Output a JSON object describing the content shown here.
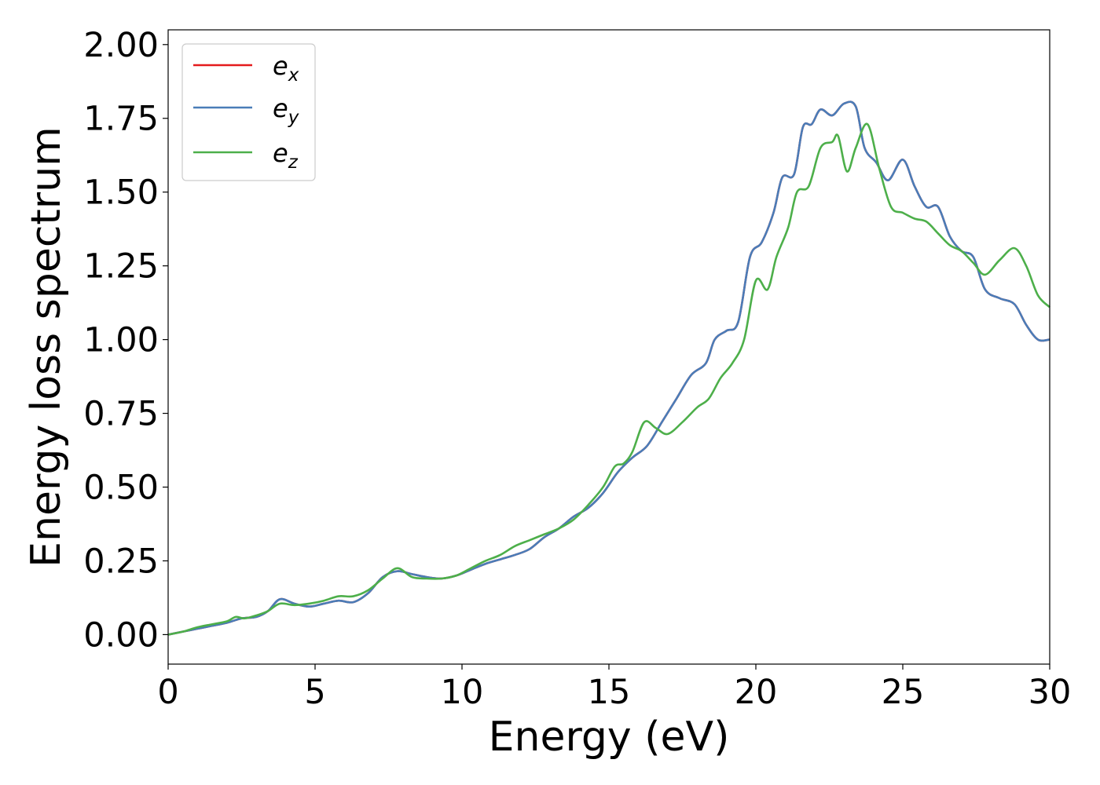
{
  "chart_data": {
    "type": "line",
    "title": "",
    "xlabel": "Energy (eV)",
    "ylabel": "Energy loss spectrum",
    "xlim": [
      0,
      30
    ],
    "ylim": [
      -0.1,
      2.05
    ],
    "xticks": [
      0,
      5,
      10,
      15,
      20,
      25,
      30
    ],
    "xtick_labels": [
      "0",
      "5",
      "10",
      "15",
      "20",
      "25",
      "30"
    ],
    "yticks": [
      0,
      0.25,
      0.5,
      0.75,
      1.0,
      1.25,
      1.5,
      1.75,
      2.0
    ],
    "ytick_labels": [
      "0.00",
      "0.25",
      "0.50",
      "0.75",
      "1.00",
      "1.25",
      "1.50",
      "1.75",
      "2.00"
    ],
    "grid": false,
    "legend_position": "top-left",
    "series": [
      {
        "name": "e_x",
        "label_base": "e",
        "label_sub": "x",
        "color": "#e41a1c",
        "x": [
          0,
          0.5,
          1.0,
          1.5,
          2.0,
          2.5,
          3.0,
          3.4,
          3.8,
          4.3,
          4.8,
          5.3,
          5.8,
          6.3,
          6.8,
          7.3,
          7.8,
          8.3,
          8.8,
          9.3,
          9.8,
          10.3,
          10.8,
          11.3,
          11.8,
          12.3,
          12.8,
          13.3,
          13.8,
          14.3,
          14.8,
          15.3,
          15.8,
          16.3,
          16.8,
          17.3,
          17.8,
          18.3,
          18.6,
          19.0,
          19.4,
          19.8,
          20.2,
          20.6,
          20.9,
          21.3,
          21.6,
          21.9,
          22.2,
          22.6,
          23.0,
          23.4,
          23.7,
          24.1,
          24.5,
          25.0,
          25.4,
          25.8,
          26.2,
          26.6,
          27.0,
          27.4,
          27.8,
          28.3,
          28.8,
          29.2,
          29.6,
          30.0
        ],
        "y": [
          0.0,
          0.01,
          0.02,
          0.03,
          0.04,
          0.055,
          0.06,
          0.08,
          0.12,
          0.105,
          0.095,
          0.105,
          0.115,
          0.11,
          0.14,
          0.195,
          0.215,
          0.205,
          0.195,
          0.19,
          0.2,
          0.22,
          0.24,
          0.255,
          0.27,
          0.29,
          0.33,
          0.36,
          0.4,
          0.43,
          0.48,
          0.55,
          0.6,
          0.64,
          0.72,
          0.8,
          0.88,
          0.92,
          1.0,
          1.03,
          1.06,
          1.28,
          1.33,
          1.43,
          1.55,
          1.56,
          1.72,
          1.73,
          1.78,
          1.76,
          1.8,
          1.79,
          1.65,
          1.6,
          1.54,
          1.61,
          1.52,
          1.45,
          1.45,
          1.35,
          1.3,
          1.28,
          1.17,
          1.14,
          1.12,
          1.05,
          1.0,
          1.0
        ]
      },
      {
        "name": "e_y",
        "label_base": "e",
        "label_sub": "y",
        "color": "#4a7db8",
        "x": [
          0,
          0.5,
          1.0,
          1.5,
          2.0,
          2.5,
          3.0,
          3.4,
          3.8,
          4.3,
          4.8,
          5.3,
          5.8,
          6.3,
          6.8,
          7.3,
          7.8,
          8.3,
          8.8,
          9.3,
          9.8,
          10.3,
          10.8,
          11.3,
          11.8,
          12.3,
          12.8,
          13.3,
          13.8,
          14.3,
          14.8,
          15.3,
          15.8,
          16.3,
          16.8,
          17.3,
          17.8,
          18.3,
          18.6,
          19.0,
          19.4,
          19.8,
          20.2,
          20.6,
          20.9,
          21.3,
          21.6,
          21.9,
          22.2,
          22.6,
          23.0,
          23.4,
          23.7,
          24.1,
          24.5,
          25.0,
          25.4,
          25.8,
          26.2,
          26.6,
          27.0,
          27.4,
          27.8,
          28.3,
          28.8,
          29.2,
          29.6,
          30.0
        ],
        "y": [
          0.0,
          0.01,
          0.02,
          0.03,
          0.04,
          0.055,
          0.06,
          0.08,
          0.12,
          0.105,
          0.095,
          0.105,
          0.115,
          0.11,
          0.14,
          0.195,
          0.215,
          0.205,
          0.195,
          0.19,
          0.2,
          0.22,
          0.24,
          0.255,
          0.27,
          0.29,
          0.33,
          0.36,
          0.4,
          0.43,
          0.48,
          0.55,
          0.6,
          0.64,
          0.72,
          0.8,
          0.88,
          0.92,
          1.0,
          1.03,
          1.06,
          1.28,
          1.33,
          1.43,
          1.55,
          1.56,
          1.72,
          1.73,
          1.78,
          1.76,
          1.8,
          1.79,
          1.65,
          1.6,
          1.54,
          1.61,
          1.52,
          1.45,
          1.45,
          1.35,
          1.3,
          1.28,
          1.17,
          1.14,
          1.12,
          1.05,
          1.0,
          1.0
        ]
      },
      {
        "name": "e_z",
        "label_base": "e",
        "label_sub": "z",
        "color": "#4daf4a",
        "x": [
          0,
          0.5,
          1.0,
          1.5,
          2.0,
          2.3,
          2.6,
          3.0,
          3.4,
          3.8,
          4.3,
          4.8,
          5.3,
          5.8,
          6.3,
          6.8,
          7.3,
          7.8,
          8.3,
          8.8,
          9.3,
          9.8,
          10.3,
          10.8,
          11.3,
          11.8,
          12.3,
          12.8,
          13.3,
          13.8,
          14.3,
          14.8,
          15.2,
          15.5,
          15.8,
          16.2,
          16.6,
          17.0,
          17.5,
          18.0,
          18.4,
          18.8,
          19.2,
          19.6,
          20.0,
          20.4,
          20.7,
          21.1,
          21.4,
          21.8,
          22.2,
          22.6,
          22.8,
          23.1,
          23.4,
          23.8,
          24.2,
          24.6,
          25.0,
          25.4,
          25.8,
          26.2,
          26.6,
          27.0,
          27.4,
          27.8,
          28.3,
          28.8,
          29.2,
          29.6,
          30.0
        ],
        "y": [
          0.0,
          0.01,
          0.025,
          0.035,
          0.045,
          0.06,
          0.055,
          0.065,
          0.08,
          0.105,
          0.1,
          0.105,
          0.115,
          0.13,
          0.13,
          0.15,
          0.19,
          0.225,
          0.195,
          0.19,
          0.19,
          0.2,
          0.225,
          0.25,
          0.27,
          0.3,
          0.32,
          0.34,
          0.36,
          0.39,
          0.44,
          0.5,
          0.57,
          0.58,
          0.62,
          0.72,
          0.7,
          0.68,
          0.72,
          0.77,
          0.8,
          0.87,
          0.92,
          1.0,
          1.2,
          1.17,
          1.28,
          1.38,
          1.5,
          1.52,
          1.65,
          1.67,
          1.69,
          1.57,
          1.65,
          1.73,
          1.58,
          1.45,
          1.43,
          1.41,
          1.4,
          1.36,
          1.32,
          1.3,
          1.26,
          1.22,
          1.27,
          1.31,
          1.25,
          1.15,
          1.11
        ]
      }
    ]
  }
}
